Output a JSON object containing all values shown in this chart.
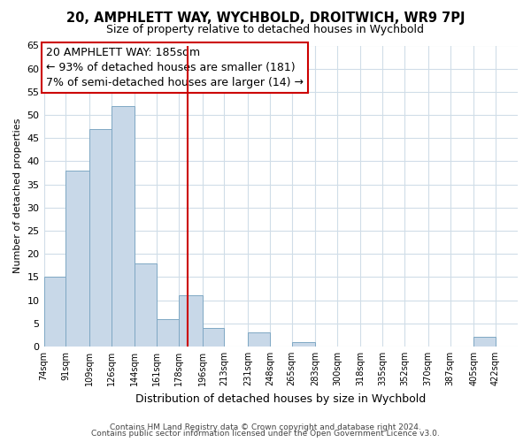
{
  "title": "20, AMPHLETT WAY, WYCHBOLD, DROITWICH, WR9 7PJ",
  "subtitle": "Size of property relative to detached houses in Wychbold",
  "xlabel": "Distribution of detached houses by size in Wychbold",
  "ylabel": "Number of detached properties",
  "bar_color": "#c8d8e8",
  "bar_edge_color": "#7fa8c4",
  "bin_labels": [
    "74sqm",
    "91sqm",
    "109sqm",
    "126sqm",
    "144sqm",
    "161sqm",
    "178sqm",
    "196sqm",
    "213sqm",
    "231sqm",
    "248sqm",
    "265sqm",
    "283sqm",
    "300sqm",
    "318sqm",
    "335sqm",
    "352sqm",
    "370sqm",
    "387sqm",
    "405sqm",
    "422sqm"
  ],
  "bin_edges": [
    74,
    91,
    109,
    126,
    144,
    161,
    178,
    196,
    213,
    231,
    248,
    265,
    283,
    300,
    318,
    335,
    352,
    370,
    387,
    405,
    422
  ],
  "counts": [
    15,
    38,
    47,
    52,
    18,
    6,
    11,
    4,
    0,
    3,
    0,
    1,
    0,
    0,
    0,
    0,
    0,
    0,
    0,
    2,
    0
  ],
  "vline_x": 185,
  "vline_color": "#cc0000",
  "annotation_line1": "20 AMPHLETT WAY: 185sqm",
  "annotation_line2": "← 93% of detached houses are smaller (181)",
  "annotation_line3": "7% of semi-detached houses are larger (14) →",
  "ylim": [
    0,
    65
  ],
  "yticks": [
    0,
    5,
    10,
    15,
    20,
    25,
    30,
    35,
    40,
    45,
    50,
    55,
    60,
    65
  ],
  "footer_line1": "Contains HM Land Registry data © Crown copyright and database right 2024.",
  "footer_line2": "Contains public sector information licensed under the Open Government Licence v3.0.",
  "background_color": "#ffffff",
  "grid_color": "#d0dde8"
}
